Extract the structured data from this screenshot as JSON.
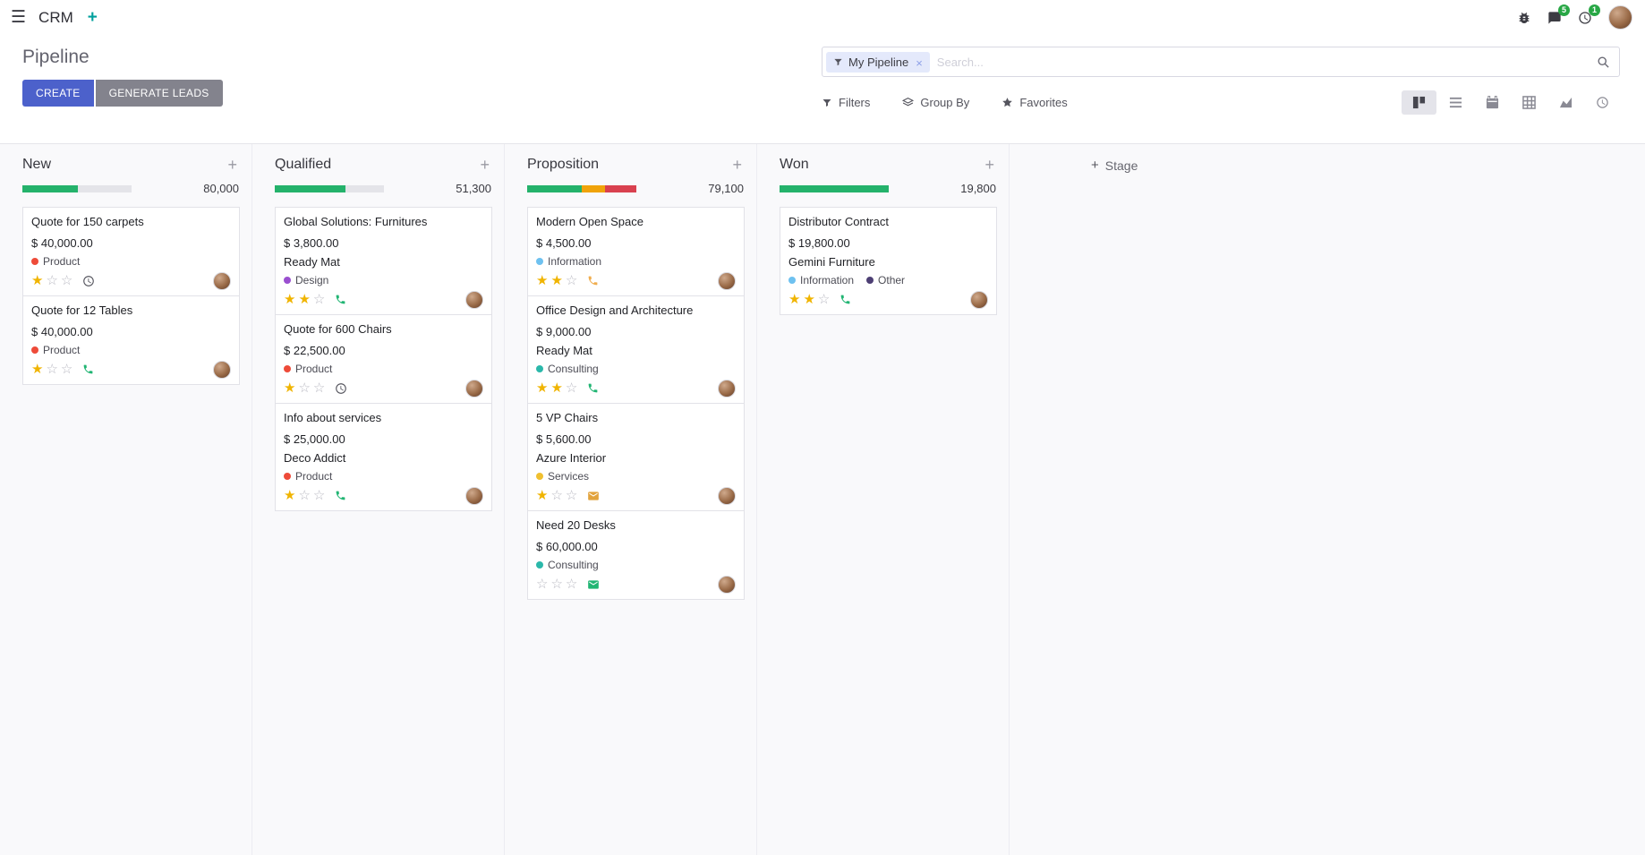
{
  "glyphs": {
    "hamburger": "☰",
    "plus": "+",
    "close": "×",
    "star_filled": "★",
    "star_empty": "☆"
  },
  "navbar": {
    "app_name": "CRM",
    "messages_badge": "5",
    "activities_badge": "1"
  },
  "control_panel": {
    "title": "Pipeline",
    "create_label": "CREATE",
    "generate_leads_label": "GENERATE LEADS",
    "search_facet": "My Pipeline",
    "search_placeholder": "Search...",
    "filters_label": "Filters",
    "group_by_label": "Group By",
    "favorites_label": "Favorites"
  },
  "board": {
    "add_stage_label": "Stage",
    "columns": [
      {
        "name": "New",
        "total": "80,000",
        "progress": [
          {
            "color": "#24b26b",
            "pct": 51
          }
        ],
        "cards": [
          {
            "title": "Quote for 150 carpets",
            "amount": "$ 40,000.00",
            "partner": "",
            "tags": [
              {
                "label": "Product",
                "color": "#ee4b39"
              }
            ],
            "stars": 1,
            "activity": {
              "icon": "clock",
              "color": "#55555e"
            }
          },
          {
            "title": "Quote for 12 Tables",
            "amount": "$ 40,000.00",
            "partner": "",
            "tags": [
              {
                "label": "Product",
                "color": "#ee4b39"
              }
            ],
            "stars": 1,
            "activity": {
              "icon": "phone",
              "color": "#21b573"
            }
          }
        ]
      },
      {
        "name": "Qualified",
        "total": "51,300",
        "progress": [
          {
            "color": "#24b26b",
            "pct": 65
          }
        ],
        "cards": [
          {
            "title": "Global Solutions: Furnitures",
            "amount": "$ 3,800.00",
            "partner": "Ready Mat",
            "tags": [
              {
                "label": "Design",
                "color": "#9a4fd0"
              }
            ],
            "stars": 2,
            "activity": {
              "icon": "phone",
              "color": "#21b573"
            }
          },
          {
            "title": "Quote for 600 Chairs",
            "amount": "$ 22,500.00",
            "partner": "",
            "tags": [
              {
                "label": "Product",
                "color": "#ee4b39"
              }
            ],
            "stars": 1,
            "activity": {
              "icon": "clock",
              "color": "#55555e"
            }
          },
          {
            "title": "Info about services",
            "amount": "$ 25,000.00",
            "partner": "Deco Addict",
            "tags": [
              {
                "label": "Product",
                "color": "#ee4b39"
              }
            ],
            "stars": 1,
            "activity": {
              "icon": "phone",
              "color": "#21b573"
            }
          }
        ]
      },
      {
        "name": "Proposition",
        "total": "79,100",
        "progress": [
          {
            "color": "#24b26b",
            "pct": 50
          },
          {
            "color": "#f0a30a",
            "pct": 21
          },
          {
            "color": "#d9414f",
            "pct": 29
          }
        ],
        "cards": [
          {
            "title": "Modern Open Space",
            "amount": "$ 4,500.00",
            "partner": "",
            "tags": [
              {
                "label": "Information",
                "color": "#6ec1f0"
              }
            ],
            "stars": 2,
            "activity": {
              "icon": "phone",
              "color": "#f0ad4e"
            }
          },
          {
            "title": "Office Design and Architecture",
            "amount": "$ 9,000.00",
            "partner": "Ready Mat",
            "tags": [
              {
                "label": "Consulting",
                "color": "#2bb8aa"
              }
            ],
            "stars": 2,
            "activity": {
              "icon": "phone",
              "color": "#21b573"
            }
          },
          {
            "title": "5 VP Chairs",
            "amount": "$ 5,600.00",
            "partner": "Azure Interior",
            "tags": [
              {
                "label": "Services",
                "color": "#f0c030"
              }
            ],
            "stars": 1,
            "activity": {
              "icon": "envelope",
              "color": "#e2a33d"
            }
          },
          {
            "title": "Need 20 Desks",
            "amount": "$ 60,000.00",
            "partner": "",
            "tags": [
              {
                "label": "Consulting",
                "color": "#2bb8aa"
              }
            ],
            "stars": 0,
            "activity": {
              "icon": "envelope",
              "color": "#21b573"
            }
          }
        ]
      },
      {
        "name": "Won",
        "total": "19,800",
        "progress": [
          {
            "color": "#24b26b",
            "pct": 100
          }
        ],
        "cards": [
          {
            "title": "Distributor Contract",
            "amount": "$ 19,800.00",
            "partner": "Gemini Furniture",
            "tags": [
              {
                "label": "Information",
                "color": "#6ec1f0"
              },
              {
                "label": "Other",
                "color": "#4d3f74"
              }
            ],
            "stars": 2,
            "activity": {
              "icon": "phone",
              "color": "#21b573"
            }
          }
        ]
      }
    ]
  }
}
